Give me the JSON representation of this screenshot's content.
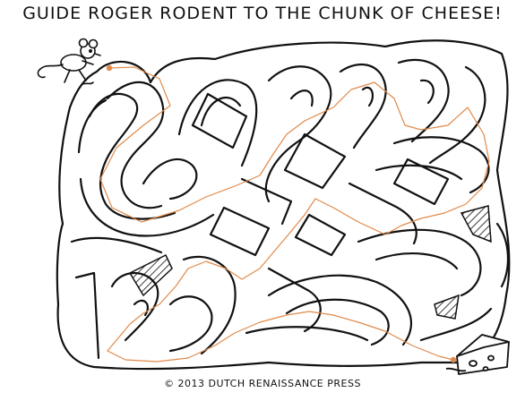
{
  "title": "GUIDE ROGER RODENT TO THE CHUNK OF CHEESE!",
  "credit": "© 2013 DUTCH RENAISSANCE PRESS",
  "colors": {
    "ink": "#111111",
    "solution_path": "#e08a4a",
    "background": "#ffffff",
    "cheese": "#ffffff"
  },
  "maze": {
    "start_label": "Roger Rodent (mouse)",
    "goal_label": "chunk of cheese",
    "solution_shown": true
  }
}
